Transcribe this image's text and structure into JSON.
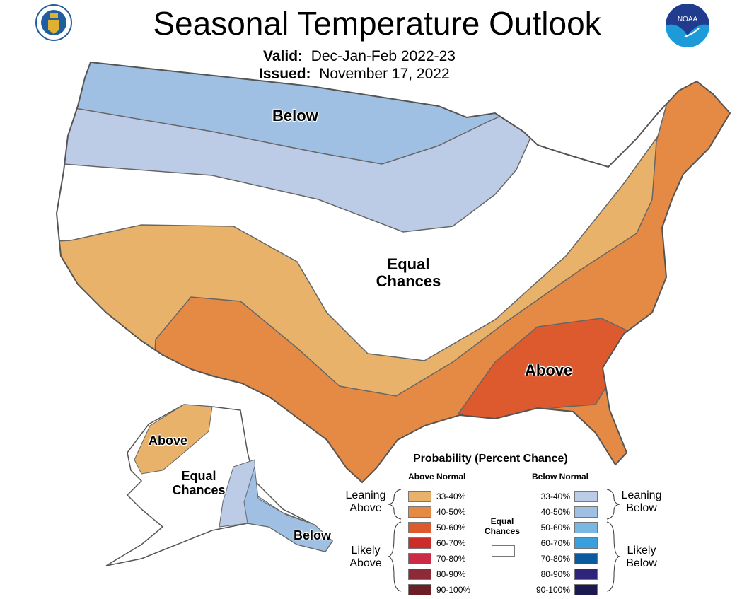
{
  "header": {
    "title": "Seasonal Temperature Outlook",
    "valid_label": "Valid:",
    "valid_value": "Dec-Jan-Feb 2022-23",
    "issued_label": "Issued:",
    "issued_value": "November 17, 2022",
    "left_logo": "department-of-commerce-seal",
    "right_logo": "noaa-logo",
    "right_logo_text": "NOAA"
  },
  "map_labels": {
    "conus_below": "Below",
    "conus_equal": "Equal Chances",
    "conus_above": "Above",
    "ak_above": "Above",
    "ak_equal": "Equal Chances",
    "ak_below": "Below"
  },
  "legend": {
    "title": "Probability (Percent Chance)",
    "above_header": "Above Normal",
    "below_header": "Below Normal",
    "leaning_above": "Leaning Above",
    "likely_above": "Likely Above",
    "leaning_below": "Leaning Below",
    "likely_below": "Likely Below",
    "equal_chances": "Equal Chances",
    "equal_color": "#ffffff",
    "above": [
      {
        "range": "33-40%",
        "color": "#e8b26a"
      },
      {
        "range": "40-50%",
        "color": "#e48a45"
      },
      {
        "range": "50-60%",
        "color": "#dc5a2e"
      },
      {
        "range": "60-70%",
        "color": "#cc2c2a"
      },
      {
        "range": "70-80%",
        "color": "#cc2b48"
      },
      {
        "range": "80-90%",
        "color": "#8c2a38"
      },
      {
        "range": "90-100%",
        "color": "#6a1e26"
      }
    ],
    "below": [
      {
        "range": "33-40%",
        "color": "#bccbe6"
      },
      {
        "range": "40-50%",
        "color": "#9fc0e2"
      },
      {
        "range": "50-60%",
        "color": "#7ab8e4"
      },
      {
        "range": "60-70%",
        "color": "#3a9fdc"
      },
      {
        "range": "70-80%",
        "color": "#0b5aa0"
      },
      {
        "range": "80-90%",
        "color": "#2e2478"
      },
      {
        "range": "90-100%",
        "color": "#1c1850"
      }
    ]
  }
}
